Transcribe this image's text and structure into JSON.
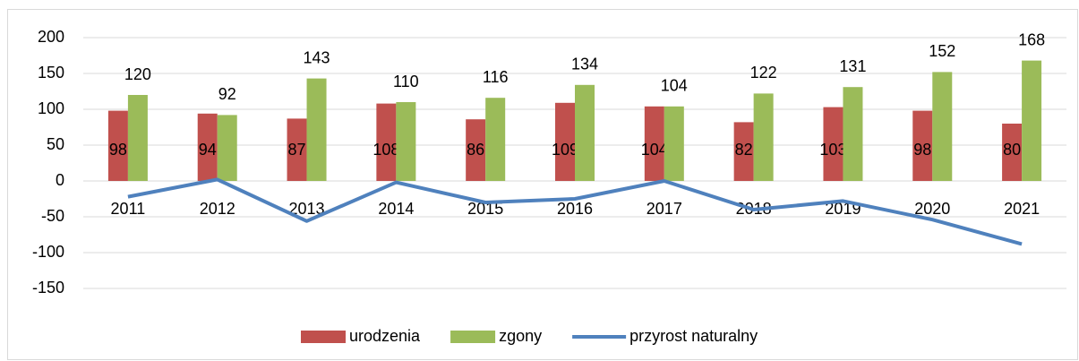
{
  "chart_data": {
    "type": "bar",
    "categories": [
      "2011",
      "2012",
      "2013",
      "2014",
      "2015",
      "2016",
      "2017",
      "2018",
      "2019",
      "2020",
      "2021"
    ],
    "series": [
      {
        "name": "urodzenia",
        "color": "#c0504d",
        "values": [
          98,
          94,
          87,
          108,
          86,
          109,
          104,
          82,
          103,
          98,
          80
        ]
      },
      {
        "name": "zgony",
        "color": "#9bbb59",
        "values": [
          120,
          92,
          143,
          110,
          116,
          134,
          104,
          122,
          131,
          152,
          168
        ]
      },
      {
        "name": "przyrost naturalny",
        "color": "#4f81bd",
        "type": "line",
        "values": [
          -22,
          2,
          -56,
          -2,
          -30,
          -25,
          0,
          -40,
          -28,
          -54,
          -88
        ]
      }
    ],
    "ylim": [
      -150,
      200
    ],
    "yticks": [
      -150,
      -100,
      -50,
      0,
      50,
      100,
      150,
      200
    ],
    "grid": true,
    "legend": "bottom"
  }
}
